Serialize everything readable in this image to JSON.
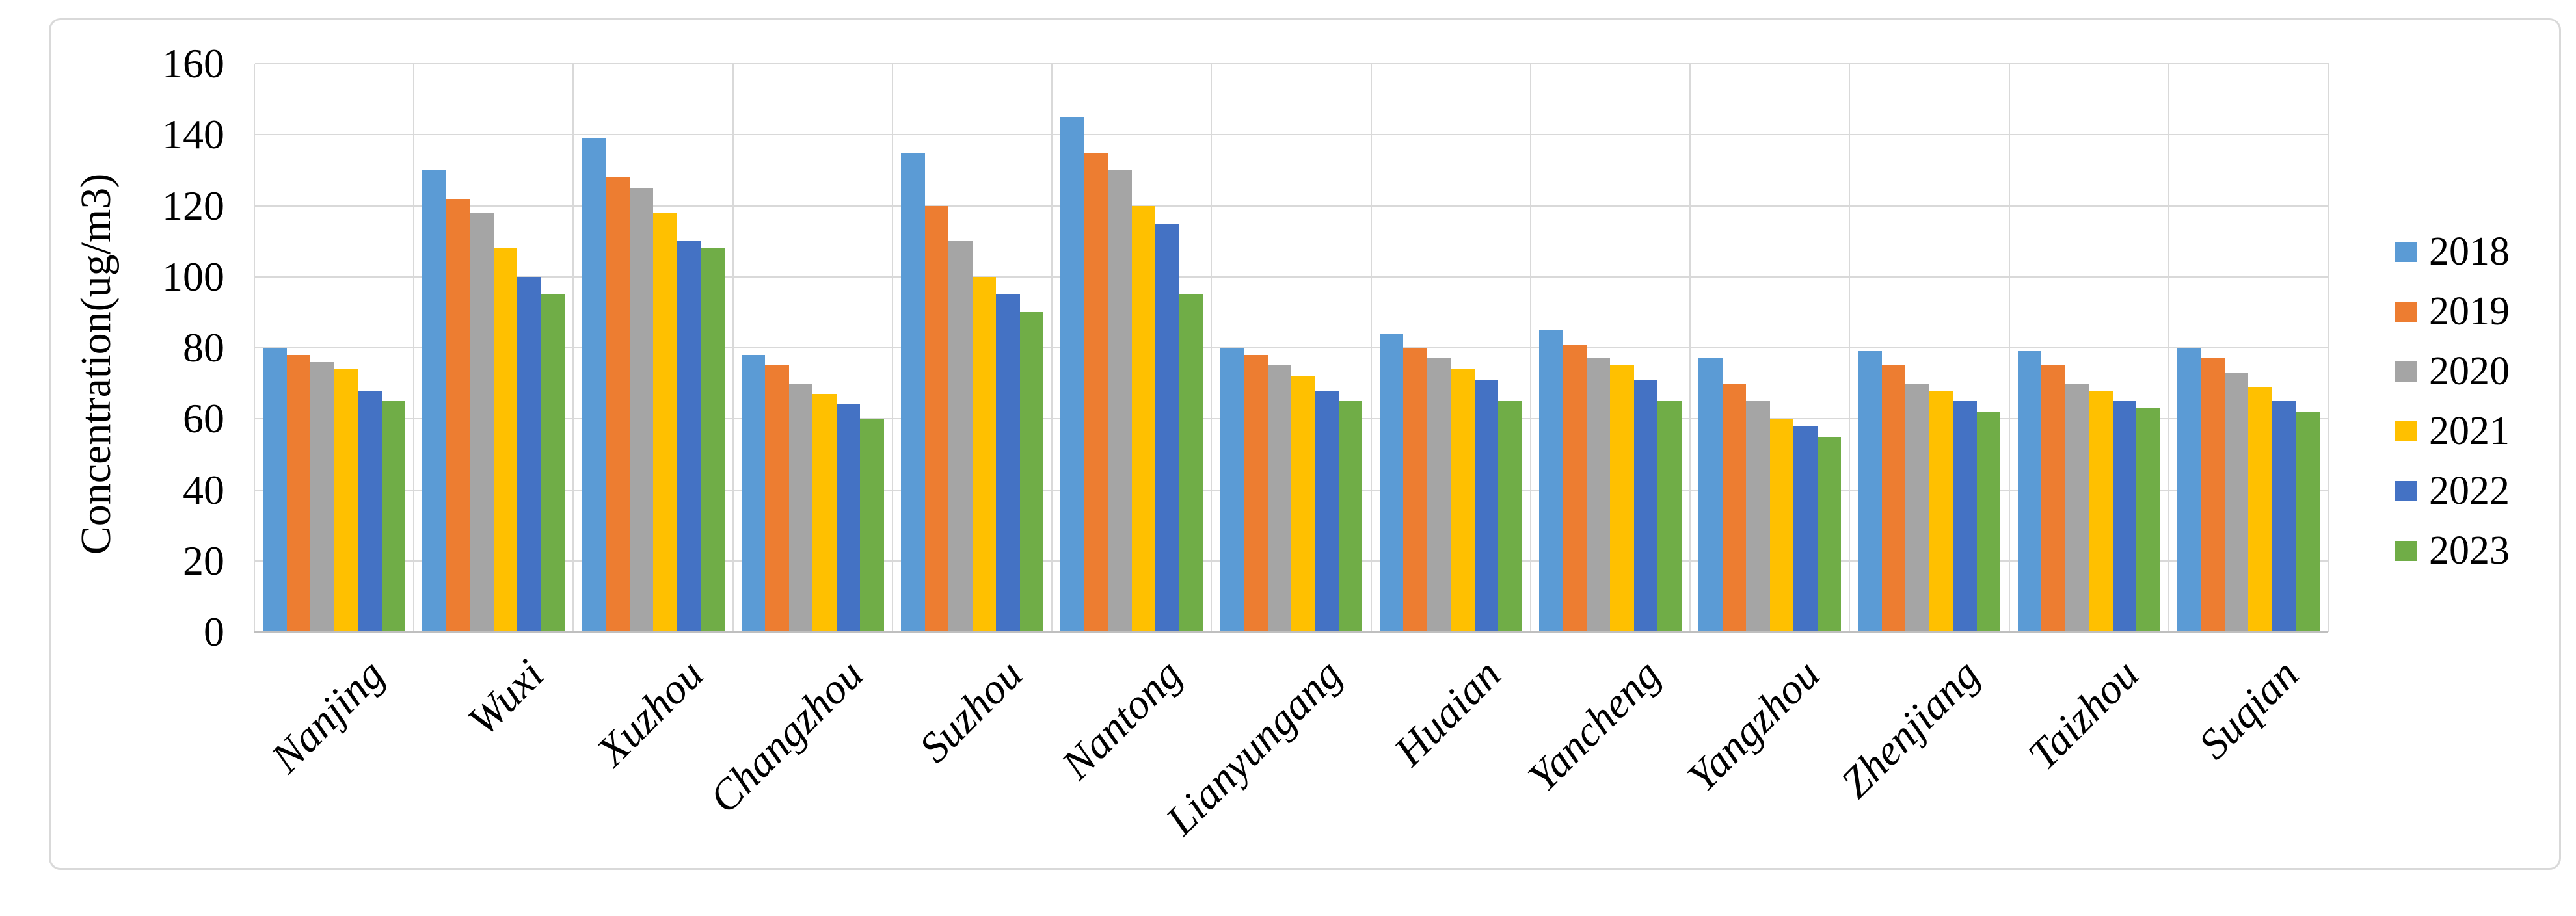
{
  "figure": {
    "background_color": "#ffffff",
    "frame_border_color": "#d9d9d9",
    "gridline_color": "#d9d9d9",
    "axis_line_color": "#bfbfbf",
    "text_color": "#000000"
  },
  "chart_data": {
    "type": "bar",
    "title": "",
    "xlabel": "",
    "ylabel": "Concentration(ug/m3)",
    "ylim": [
      0,
      160
    ],
    "yticks": [
      0,
      20,
      40,
      60,
      80,
      100,
      120,
      140,
      160
    ],
    "grid": "horizontal major gridlines every 20; vertical gridlines at category boundaries",
    "legend_position": "right",
    "categories": [
      "Nanjing",
      "Wuxi",
      "Xuzhou",
      "Changzhou",
      "Suzhou",
      "Nantong",
      "Lianyungang",
      "Huaian",
      "Yancheng",
      "Yangzhou",
      "Zhenjiang",
      "Taizhou",
      "Suqian"
    ],
    "series": [
      {
        "name": "2018",
        "color": "#5B9BD5",
        "values": [
          80,
          130,
          139,
          78,
          135,
          145,
          80,
          84,
          85,
          77,
          79,
          79,
          80
        ]
      },
      {
        "name": "2019",
        "color": "#ED7D31",
        "values": [
          78,
          122,
          128,
          75,
          120,
          135,
          78,
          80,
          81,
          70,
          75,
          75,
          77
        ]
      },
      {
        "name": "2020",
        "color": "#A5A5A5",
        "values": [
          76,
          118,
          125,
          70,
          110,
          130,
          75,
          77,
          77,
          65,
          70,
          70,
          73
        ]
      },
      {
        "name": "2021",
        "color": "#FFC000",
        "values": [
          74,
          108,
          118,
          67,
          100,
          120,
          72,
          74,
          75,
          60,
          68,
          68,
          69
        ]
      },
      {
        "name": "2022",
        "color": "#4472C4",
        "values": [
          68,
          100,
          110,
          64,
          95,
          115,
          68,
          71,
          71,
          58,
          65,
          65,
          65
        ]
      },
      {
        "name": "2023",
        "color": "#70AD47",
        "values": [
          65,
          95,
          108,
          60,
          90,
          95,
          65,
          65,
          65,
          55,
          62,
          63,
          62
        ]
      }
    ]
  }
}
